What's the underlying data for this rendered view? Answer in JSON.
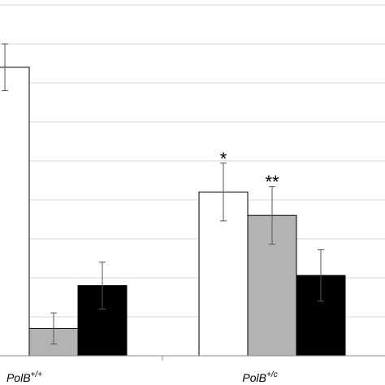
{
  "chart_data": {
    "type": "bar",
    "categories": [
      {
        "base": "PolB",
        "sup": "+/+"
      },
      {
        "base": "PolB",
        "sup": "+/c"
      }
    ],
    "series": [
      {
        "color": "#ffffff",
        "values": [
          3.7,
          2.1
        ],
        "errors": [
          0.3,
          0.37
        ]
      },
      {
        "color": "#b3b3b3",
        "values": [
          0.35,
          1.8
        ],
        "errors": [
          0.2,
          0.37
        ]
      },
      {
        "color": "#000000",
        "values": [
          0.9,
          1.03
        ],
        "errors": [
          0.3,
          0.33
        ]
      }
    ],
    "significance": [
      {
        "category": 1,
        "series": 0,
        "label": "*"
      },
      {
        "category": 1,
        "series": 1,
        "label": "**"
      }
    ],
    "ylim": [
      0,
      4.5
    ],
    "gridlines": [
      0.5,
      1.0,
      1.5,
      2.0,
      2.5,
      3.0,
      3.5,
      4.0,
      4.5
    ],
    "grid": true,
    "legend": "none"
  }
}
